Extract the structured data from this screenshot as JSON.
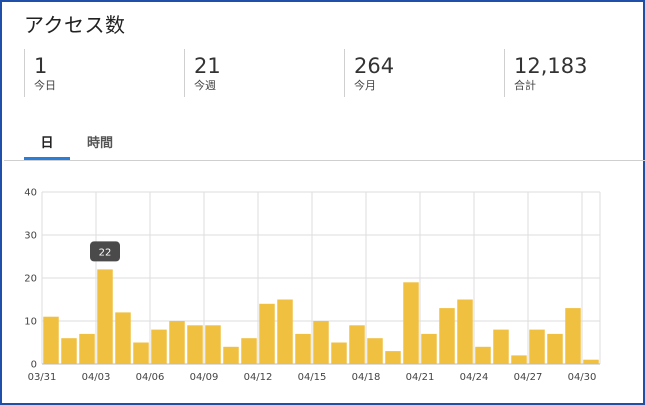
{
  "title": "アクセス数",
  "stats": [
    {
      "value": "1",
      "label": "今日"
    },
    {
      "value": "21",
      "label": "今週"
    },
    {
      "value": "264",
      "label": "今月"
    },
    {
      "value": "12,183",
      "label": "合計"
    }
  ],
  "tabs": [
    {
      "label": "日",
      "active": true
    },
    {
      "label": "時間",
      "active": false
    }
  ],
  "colors": {
    "bar": "#f0c040",
    "accent": "#2a7dd8",
    "grid": "#dddddd",
    "tooltip": "#4a4a4a"
  },
  "tooltip": {
    "label": "22",
    "index": 3
  },
  "chart_data": {
    "type": "bar",
    "categories": [
      "03/31",
      "04/01",
      "04/02",
      "04/03",
      "04/04",
      "04/05",
      "04/06",
      "04/07",
      "04/08",
      "04/09",
      "04/10",
      "04/11",
      "04/12",
      "04/13",
      "04/14",
      "04/15",
      "04/16",
      "04/17",
      "04/18",
      "04/19",
      "04/20",
      "04/21",
      "04/22",
      "04/23",
      "04/24",
      "04/25",
      "04/26",
      "04/27",
      "04/28",
      "04/29",
      "04/30"
    ],
    "values": [
      11,
      6,
      7,
      22,
      12,
      5,
      8,
      10,
      9,
      9,
      4,
      6,
      14,
      15,
      7,
      10,
      5,
      9,
      6,
      3,
      19,
      7,
      13,
      15,
      4,
      8,
      2,
      8,
      7,
      13,
      1
    ],
    "x_tick_labels": [
      "03/31",
      "04/03",
      "04/06",
      "04/09",
      "04/12",
      "04/15",
      "04/18",
      "04/21",
      "04/24",
      "04/27",
      "04/30"
    ],
    "y_ticks": [
      0,
      10,
      20,
      30,
      40
    ],
    "ylim": [
      0,
      40
    ],
    "grid": true,
    "title": "",
    "xlabel": "",
    "ylabel": ""
  }
}
